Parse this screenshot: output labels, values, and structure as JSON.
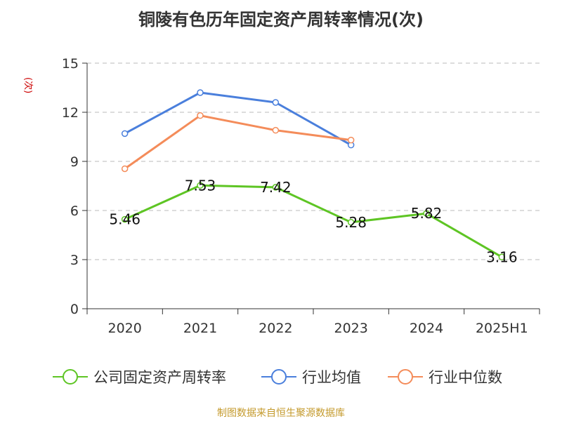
{
  "chart_data": {
    "type": "line",
    "title": "铜陵有色历年固定资产周转率情况(次)",
    "ylabel": "(次)",
    "categories": [
      "2020",
      "2021",
      "2022",
      "2023",
      "2024",
      "2025H1"
    ],
    "ylim": [
      0,
      15
    ],
    "yticks": [
      0,
      3,
      6,
      9,
      12,
      15
    ],
    "grid": true,
    "legend_position": "bottom",
    "series": [
      {
        "name": "公司固定资产周转率",
        "color": "#5ec524",
        "values": [
          5.46,
          7.53,
          7.42,
          5.28,
          5.82,
          3.16
        ],
        "labels": [
          "5.46",
          "7.53",
          "7.42",
          "5.28",
          "5.82",
          "3.16"
        ]
      },
      {
        "name": "行业均值",
        "color": "#4a7fdc",
        "values": [
          10.7,
          13.2,
          12.6,
          10.0,
          null,
          null
        ]
      },
      {
        "name": "行业中位数",
        "color": "#f48c5a",
        "values": [
          8.55,
          11.8,
          10.9,
          10.3,
          null,
          null
        ]
      }
    ]
  },
  "source": "制图数据来自恒生聚源数据库"
}
